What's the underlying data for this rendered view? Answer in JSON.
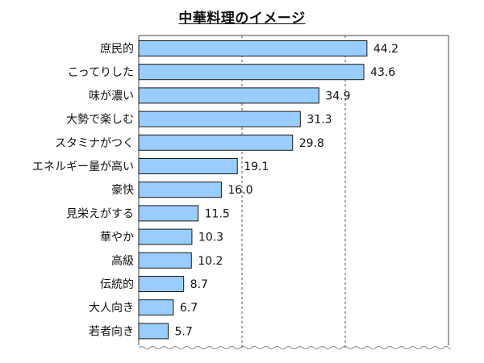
{
  "chart_data": {
    "type": "bar",
    "orientation": "horizontal",
    "title": "中華料理のイメージ",
    "categories": [
      "庶民的",
      "こってりした",
      "味が濃い",
      "大勢で楽しむ",
      "スタミナがつく",
      "エネルギー量が高い",
      "豪快",
      "見栄えがする",
      "華やか",
      "高級",
      "伝統的",
      "大人向き",
      "若者向き"
    ],
    "values": [
      44.2,
      43.6,
      34.9,
      31.3,
      29.8,
      19.1,
      16.0,
      11.5,
      10.3,
      10.2,
      8.7,
      6.7,
      5.7
    ],
    "value_labels": [
      "44.2",
      "43.6",
      "34.9",
      "31.3",
      "29.8",
      "19.1",
      "16.0",
      "11.5",
      "10.3",
      "10.2",
      "8.7",
      "6.7",
      "5.7"
    ],
    "xlim": [
      0,
      60
    ],
    "gridlines": [
      20,
      40
    ],
    "grid": true,
    "bar_color": "#99ccff",
    "bar_border_color": "#1a1a1a"
  }
}
